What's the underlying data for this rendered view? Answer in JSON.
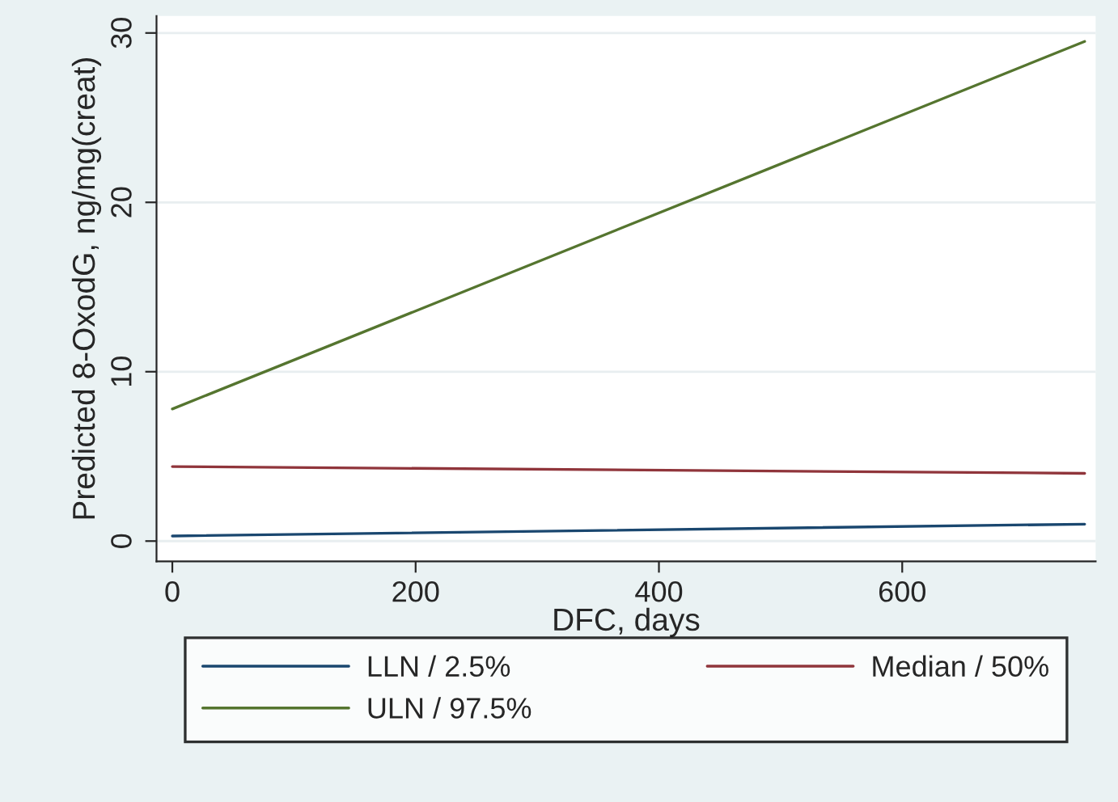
{
  "chart_data": {
    "type": "line",
    "xlabel": "DFC, days",
    "ylabel": "Predicted 8-OxodG, ng/mg(creat)",
    "xlim": [
      -13,
      759
    ],
    "xticks": [
      0,
      200,
      400,
      600
    ],
    "ylim": [
      -1.2,
      31
    ],
    "yticks": [
      0,
      10,
      20,
      30
    ],
    "grid": "y",
    "legend": "bottom",
    "marker": "none",
    "line_style": "solid",
    "x": [
      0,
      750
    ],
    "series": [
      {
        "name": "LLN / 2.5%",
        "color": "#1a476f",
        "values": [
          0.3,
          1.0
        ]
      },
      {
        "name": "Median / 50%",
        "color": "#90353b",
        "values": [
          4.4,
          4.0
        ]
      },
      {
        "name": "ULN / 97.5%",
        "color": "#55752f",
        "values": [
          7.8,
          29.5
        ]
      }
    ]
  }
}
